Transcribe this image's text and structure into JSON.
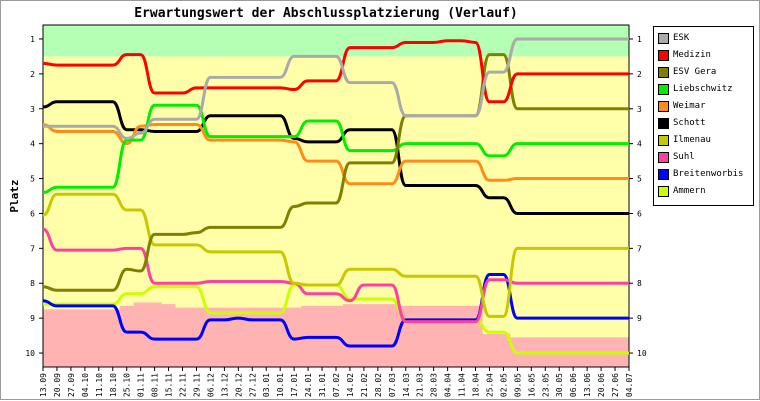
{
  "chart_data": {
    "type": "line",
    "title": "Erwartungswert der Abschlussplatzierung (Verlauf)",
    "ylabel": "Platz",
    "ylim": [
      0.6,
      10.4
    ],
    "y_inverted": true,
    "y_ticks": [
      "1",
      "2",
      "3",
      "4",
      "5",
      "6",
      "7",
      "8",
      "9",
      "10"
    ],
    "x": [
      "13.09",
      "20.09",
      "27.09",
      "04.10",
      "11.10",
      "18.10",
      "25.10",
      "01.11",
      "08.11",
      "15.11",
      "22.11",
      "29.11",
      "06.12",
      "13.12",
      "20.12",
      "27.12",
      "03.01",
      "10.01",
      "17.01",
      "24.01",
      "31.01",
      "07.02",
      "14.02",
      "21.02",
      "28.02",
      "07.03",
      "14.03",
      "21.03",
      "28.03",
      "04.04",
      "11.04",
      "18.04",
      "25.04",
      "02.05",
      "09.05",
      "16.05",
      "23.05",
      "30.05",
      "06.06",
      "13.06",
      "20.06",
      "27.06",
      "04.07"
    ],
    "background_zones": [
      {
        "from": 0.6,
        "to": 1.5,
        "color": "#b3ffb3"
      },
      {
        "from": 1.5,
        "to": 10.4,
        "color": "#ffffaa"
      }
    ],
    "relegation_zone": {
      "color": "#ffb3b3",
      "top": [
        8.75,
        8.75,
        8.75,
        8.75,
        8.75,
        8.75,
        8.65,
        8.55,
        8.55,
        8.6,
        8.7,
        8.7,
        8.7,
        8.7,
        8.7,
        8.7,
        8.7,
        8.7,
        8.7,
        8.65,
        8.65,
        8.65,
        8.6,
        8.6,
        8.6,
        8.6,
        8.65,
        8.65,
        8.65,
        8.65,
        8.65,
        8.65,
        9.45,
        9.45,
        9.55,
        9.55,
        9.55,
        9.55,
        9.55,
        9.55,
        9.55,
        9.55,
        9.55
      ]
    },
    "series": [
      {
        "name": "ESK",
        "color": "#aaaaaa",
        "values": [
          3.5,
          3.5,
          3.5,
          3.5,
          3.5,
          3.5,
          3.85,
          3.7,
          3.3,
          3.3,
          3.3,
          3.3,
          2.1,
          2.1,
          2.1,
          2.1,
          2.1,
          2.1,
          1.5,
          1.5,
          1.5,
          1.5,
          2.25,
          2.25,
          2.25,
          2.25,
          3.2,
          3.2,
          3.2,
          3.2,
          3.2,
          3.2,
          1.95,
          1.95,
          1.0,
          1.0,
          1.0,
          1.0,
          1.0,
          1.0,
          1.0,
          1.0,
          1.0
        ]
      },
      {
        "name": "Medizin",
        "color": "#ff0000",
        "values": [
          1.7,
          1.75,
          1.75,
          1.75,
          1.75,
          1.75,
          1.45,
          1.45,
          2.55,
          2.55,
          2.55,
          2.4,
          2.4,
          2.4,
          2.4,
          2.4,
          2.4,
          2.4,
          2.45,
          2.2,
          2.2,
          2.2,
          1.25,
          1.25,
          1.25,
          1.25,
          1.1,
          1.1,
          1.1,
          1.05,
          1.05,
          1.1,
          2.8,
          2.8,
          2.0,
          2.0,
          2.0,
          2.0,
          2.0,
          2.0,
          2.0,
          2.0,
          2.0
        ]
      },
      {
        "name": "ESV Gera",
        "color": "#808000",
        "values": [
          8.1,
          8.2,
          8.2,
          8.2,
          8.2,
          8.2,
          7.6,
          7.65,
          6.6,
          6.6,
          6.6,
          6.55,
          6.4,
          6.4,
          6.4,
          6.4,
          6.4,
          6.4,
          5.8,
          5.7,
          5.7,
          5.7,
          4.55,
          4.55,
          4.55,
          4.55,
          3.2,
          3.2,
          3.2,
          3.2,
          3.2,
          3.2,
          1.45,
          1.45,
          3.0,
          3.0,
          3.0,
          3.0,
          3.0,
          3.0,
          3.0,
          3.0,
          3.0
        ]
      },
      {
        "name": "Liebschwitz",
        "color": "#00ee00",
        "values": [
          5.4,
          5.25,
          5.25,
          5.25,
          5.25,
          5.25,
          3.9,
          3.9,
          2.9,
          2.9,
          2.9,
          2.9,
          3.8,
          3.8,
          3.8,
          3.8,
          3.8,
          3.8,
          3.8,
          3.35,
          3.35,
          3.35,
          4.2,
          4.2,
          4.2,
          4.2,
          4.0,
          4.0,
          4.0,
          4.0,
          4.0,
          4.0,
          4.35,
          4.35,
          4.0,
          4.0,
          4.0,
          4.0,
          4.0,
          4.0,
          4.0,
          4.0,
          4.0
        ]
      },
      {
        "name": "Weimar",
        "color": "#ff8c1a",
        "values": [
          3.45,
          3.65,
          3.65,
          3.65,
          3.65,
          3.65,
          4.0,
          3.5,
          3.45,
          3.45,
          3.45,
          3.45,
          3.9,
          3.9,
          3.9,
          3.9,
          3.9,
          3.9,
          3.95,
          4.5,
          4.5,
          4.5,
          5.15,
          5.15,
          5.15,
          5.15,
          4.5,
          4.5,
          4.5,
          4.5,
          4.5,
          4.5,
          5.05,
          5.05,
          5.0,
          5.0,
          5.0,
          5.0,
          5.0,
          5.0,
          5.0,
          5.0,
          5.0
        ]
      },
      {
        "name": "Schott",
        "color": "#000000",
        "values": [
          2.95,
          2.8,
          2.8,
          2.8,
          2.8,
          2.8,
          3.6,
          3.6,
          3.65,
          3.65,
          3.65,
          3.65,
          3.2,
          3.2,
          3.2,
          3.2,
          3.2,
          3.2,
          3.85,
          3.95,
          3.95,
          3.95,
          3.6,
          3.6,
          3.6,
          3.6,
          5.2,
          5.2,
          5.2,
          5.2,
          5.2,
          5.2,
          5.55,
          5.55,
          6.0,
          6.0,
          6.0,
          6.0,
          6.0,
          6.0,
          6.0,
          6.0,
          6.0
        ]
      },
      {
        "name": "Ilmenau",
        "color": "#c8c800",
        "values": [
          6.05,
          5.45,
          5.45,
          5.45,
          5.45,
          5.45,
          5.9,
          5.9,
          6.9,
          6.9,
          6.9,
          6.9,
          7.1,
          7.1,
          7.1,
          7.1,
          7.1,
          7.1,
          8.0,
          8.05,
          8.05,
          8.05,
          7.6,
          7.6,
          7.6,
          7.6,
          7.8,
          7.8,
          7.8,
          7.8,
          7.8,
          7.8,
          8.95,
          8.95,
          7.0,
          7.0,
          7.0,
          7.0,
          7.0,
          7.0,
          7.0,
          7.0,
          7.0
        ]
      },
      {
        "name": "Suhl",
        "color": "#ff40a0",
        "values": [
          6.45,
          7.05,
          7.05,
          7.05,
          7.05,
          7.05,
          7.0,
          7.0,
          8.0,
          8.0,
          8.0,
          8.0,
          7.95,
          7.95,
          7.95,
          7.95,
          7.95,
          7.95,
          8.0,
          8.3,
          8.3,
          8.3,
          8.5,
          8.05,
          8.05,
          8.05,
          9.1,
          9.1,
          9.1,
          9.1,
          9.1,
          9.1,
          7.9,
          7.9,
          8.0,
          8.0,
          8.0,
          8.0,
          8.0,
          8.0,
          8.0,
          8.0,
          8.0
        ]
      },
      {
        "name": "Breitenworbis",
        "color": "#0000ff",
        "values": [
          8.5,
          8.65,
          8.65,
          8.65,
          8.65,
          8.65,
          9.4,
          9.4,
          9.6,
          9.6,
          9.6,
          9.6,
          9.05,
          9.05,
          9.0,
          9.05,
          9.05,
          9.05,
          9.6,
          9.55,
          9.55,
          9.55,
          9.8,
          9.8,
          9.8,
          9.8,
          9.05,
          9.05,
          9.05,
          9.05,
          9.05,
          9.05,
          7.75,
          7.75,
          9.0,
          9.0,
          9.0,
          9.0,
          9.0,
          9.0,
          9.0,
          9.0,
          9.0
        ]
      },
      {
        "name": "Ammern",
        "color": "#ccff00",
        "values": [
          8.6,
          8.6,
          8.6,
          8.6,
          8.6,
          8.6,
          8.3,
          8.3,
          8.1,
          8.1,
          8.1,
          8.1,
          8.85,
          8.85,
          8.85,
          8.85,
          8.85,
          8.85,
          8.05,
          8.05,
          8.05,
          8.05,
          8.45,
          8.45,
          8.45,
          8.45,
          9.05,
          9.05,
          9.05,
          9.05,
          9.05,
          9.05,
          9.4,
          9.4,
          10.0,
          10.0,
          10.0,
          10.0,
          10.0,
          10.0,
          10.0,
          10.0,
          10.0
        ]
      }
    ]
  }
}
